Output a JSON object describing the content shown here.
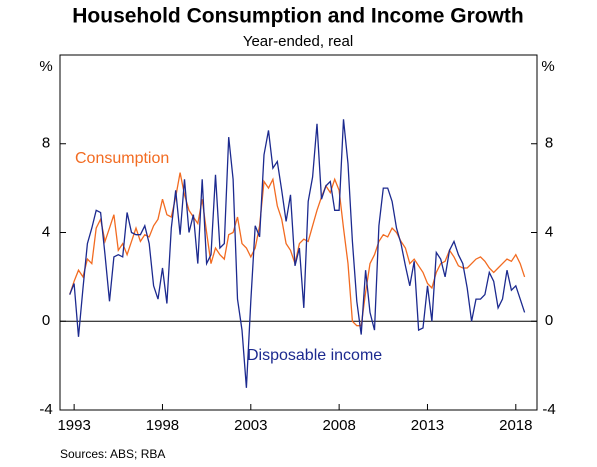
{
  "chart_data": {
    "type": "line",
    "title": "Household Consumption and Income Growth",
    "subtitle": "Year-ended, real",
    "unit": "%",
    "source": "Sources: ABS; RBA",
    "x": [
      1992.75,
      1993,
      1993.25,
      1993.5,
      1993.75,
      1994,
      1994.25,
      1994.5,
      1994.75,
      1995,
      1995.25,
      1995.5,
      1995.75,
      1996,
      1996.25,
      1996.5,
      1996.75,
      1997,
      1997.25,
      1997.5,
      1997.75,
      1998,
      1998.25,
      1998.5,
      1998.75,
      1999,
      1999.25,
      1999.5,
      1999.75,
      2000,
      2000.25,
      2000.5,
      2000.75,
      2001,
      2001.25,
      2001.5,
      2001.75,
      2002,
      2002.25,
      2002.5,
      2002.75,
      2003,
      2003.25,
      2003.5,
      2003.75,
      2004,
      2004.25,
      2004.5,
      2004.75,
      2005,
      2005.25,
      2005.5,
      2005.75,
      2006,
      2006.25,
      2006.5,
      2006.75,
      2007,
      2007.25,
      2007.5,
      2007.75,
      2008,
      2008.25,
      2008.5,
      2008.75,
      2009,
      2009.25,
      2009.5,
      2009.75,
      2010,
      2010.25,
      2010.5,
      2010.75,
      2011,
      2011.25,
      2011.5,
      2011.75,
      2012,
      2012.25,
      2012.5,
      2012.75,
      2013,
      2013.25,
      2013.5,
      2013.75,
      2014,
      2014.25,
      2014.5,
      2014.75,
      2015,
      2015.25,
      2015.5,
      2015.75,
      2016,
      2016.25,
      2016.5,
      2016.75,
      2017,
      2017.25,
      2017.5,
      2017.75,
      2018,
      2018.25,
      2018.5
    ],
    "series": [
      {
        "name": "Consumption",
        "color": "#f26b21",
        "values": [
          1.2,
          1.8,
          2.3,
          2.0,
          2.8,
          2.6,
          4.2,
          4.6,
          3.6,
          4.2,
          4.8,
          3.2,
          3.5,
          3.0,
          3.6,
          4.2,
          3.6,
          3.9,
          3.8,
          4.3,
          4.6,
          5.5,
          4.8,
          4.7,
          5.6,
          6.7,
          5.7,
          5.0,
          4.7,
          4.4,
          5.5,
          4.0,
          2.6,
          3.3,
          3.0,
          2.8,
          3.9,
          4.0,
          4.7,
          3.5,
          3.3,
          2.9,
          3.3,
          4.3,
          6.3,
          6.0,
          6.4,
          5.2,
          4.6,
          3.5,
          3.2,
          2.6,
          3.5,
          3.7,
          3.6,
          4.3,
          5.0,
          5.6,
          6.1,
          5.8,
          6.4,
          5.9,
          4.2,
          2.6,
          0.0,
          -0.2,
          -0.2,
          1.3,
          2.6,
          3.0,
          3.6,
          3.9,
          3.8,
          4.2,
          4.0,
          3.6,
          3.3,
          2.6,
          2.8,
          2.5,
          2.2,
          1.7,
          1.5,
          2.2,
          2.6,
          2.7,
          3.2,
          2.9,
          2.5,
          2.4,
          2.4,
          2.6,
          2.8,
          2.9,
          2.7,
          2.4,
          2.2,
          2.4,
          2.6,
          2.8,
          2.7,
          3.0,
          2.6,
          2.0
        ]
      },
      {
        "name": "Disposable income",
        "color": "#1c2a8f",
        "values": [
          1.2,
          1.7,
          -0.7,
          1.5,
          3.5,
          4.2,
          5.0,
          4.9,
          3.0,
          0.9,
          2.9,
          3.0,
          2.9,
          4.9,
          4.0,
          3.9,
          3.9,
          4.3,
          3.5,
          1.6,
          1.0,
          2.4,
          0.8,
          4.2,
          5.9,
          3.9,
          6.4,
          4.0,
          4.8,
          2.6,
          6.4,
          2.6,
          3.0,
          6.6,
          3.3,
          3.5,
          8.3,
          6.4,
          1.0,
          -0.4,
          -3.0,
          0.9,
          4.3,
          3.8,
          7.5,
          8.6,
          6.9,
          7.2,
          5.9,
          4.5,
          5.7,
          2.5,
          3.3,
          0.6,
          5.4,
          6.5,
          8.9,
          5.5,
          6.1,
          6.3,
          5.0,
          5.0,
          9.1,
          7.1,
          3.6,
          0.9,
          -0.6,
          2.3,
          0.4,
          -0.4,
          4.3,
          6.0,
          6.0,
          5.4,
          4.2,
          3.5,
          2.5,
          1.6,
          2.7,
          -0.4,
          -0.3,
          1.6,
          0.0,
          3.1,
          2.8,
          2.0,
          3.2,
          3.6,
          3.0,
          2.6,
          1.5,
          0.0,
          1.0,
          1.0,
          1.2,
          2.2,
          1.8,
          0.6,
          1.0,
          2.3,
          1.4,
          1.6,
          1.0,
          0.4
        ]
      }
    ],
    "xlim": [
      1992.2,
      2019.2
    ],
    "xticks": [
      1993,
      1998,
      2003,
      2008,
      2013,
      2018
    ],
    "ylim": [
      -4,
      12
    ],
    "yticks": [
      -4,
      0,
      4,
      8
    ],
    "grid": false
  }
}
